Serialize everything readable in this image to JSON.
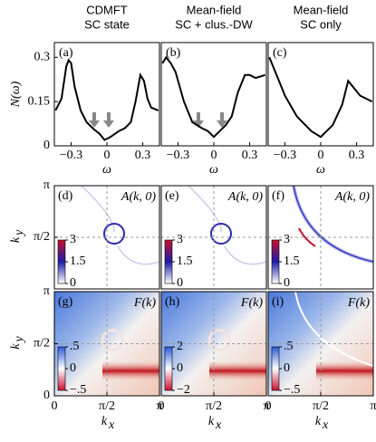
{
  "chart_data": [
    {
      "type": "line",
      "header": [
        "CDMFT",
        "SC state"
      ],
      "panel": "(a)",
      "ylabel": "N(ω)",
      "xlabel": "ω",
      "x": [
        -0.43,
        -0.38,
        -0.34,
        -0.32,
        -0.3,
        -0.27,
        -0.22,
        -0.17,
        -0.12,
        -0.06,
        -0.02,
        0.03,
        0.1,
        0.15,
        0.2,
        0.24,
        0.28,
        0.31,
        0.34,
        0.37,
        0.43
      ],
      "values": [
        0.12,
        0.16,
        0.27,
        0.29,
        0.28,
        0.2,
        0.12,
        0.08,
        0.06,
        0.04,
        0.02,
        0.03,
        0.05,
        0.06,
        0.08,
        0.15,
        0.24,
        0.22,
        0.16,
        0.13,
        0.12
      ],
      "color": "#000000",
      "xlim": [
        -0.44,
        0.44
      ],
      "ylim": [
        0,
        0.35
      ],
      "xticks": [
        {
          "value": -0.3,
          "label": "−0.3"
        },
        0,
        0.3
      ],
      "yticks": [
        0,
        0.15,
        0.3
      ]
    },
    {
      "type": "line",
      "header": [
        "Mean-field",
        "SC + clus.-DW"
      ],
      "panel": "(b)",
      "xlabel": "ω",
      "x": [
        -0.43,
        -0.4,
        -0.36,
        -0.32,
        -0.25,
        -0.18,
        -0.1,
        -0.05,
        0,
        0.05,
        0.1,
        0.15,
        0.2,
        0.26,
        0.3,
        0.35,
        0.43
      ],
      "values": [
        0.28,
        0.3,
        0.28,
        0.25,
        0.15,
        0.08,
        0.06,
        0.05,
        0.03,
        0.05,
        0.07,
        0.1,
        0.18,
        0.24,
        0.24,
        0.23,
        0.24
      ],
      "color": "#000000",
      "xlim": [
        -0.44,
        0.44
      ],
      "ylim": [
        0,
        0.35
      ],
      "xticks": [
        {
          "value": -0.3,
          "label": "−0.3"
        },
        0,
        0.3
      ]
    },
    {
      "type": "line",
      "header": [
        "Mean-field",
        "SC only"
      ],
      "panel": "(c)",
      "xlabel": "ω",
      "x": [
        -0.43,
        -0.39,
        -0.35,
        -0.3,
        -0.2,
        -0.08,
        0,
        0.1,
        0.18,
        0.23,
        0.27,
        0.33,
        0.43
      ],
      "values": [
        0.3,
        0.26,
        0.22,
        0.17,
        0.1,
        0.05,
        0.03,
        0.07,
        0.14,
        0.22,
        0.2,
        0.17,
        0.15
      ],
      "color": "#000000",
      "xlim": [
        -0.44,
        0.44
      ],
      "ylim": [
        0,
        0.35
      ],
      "xticks": [
        {
          "value": -0.3,
          "label": "−0.3"
        },
        0,
        0.3
      ]
    },
    {
      "type": "heatmap",
      "panel": "(d)",
      "title": "A(k, 0)",
      "ylabel": "k",
      "ylabel_sub": "y",
      "xlim": [
        0,
        3.1416
      ],
      "ylim": [
        0,
        3.1416
      ],
      "yticks": [
        {
          "value": 1.5708,
          "label": "π/2"
        },
        {
          "value": 3.1416,
          "label": "π"
        }
      ],
      "colorbar": {
        "clim": [
          0,
          3
        ],
        "ticks": [
          0,
          1.5,
          3
        ],
        "colors": [
          "#ffffff",
          "#1c1ca8",
          "#c8102e"
        ]
      }
    },
    {
      "type": "heatmap",
      "panel": "(e)",
      "title": "A(k, 0)",
      "xlim": [
        0,
        3.1416
      ],
      "ylim": [
        0,
        3.1416
      ],
      "colorbar": {
        "clim": [
          0,
          3
        ],
        "ticks": [
          0,
          1.5,
          3
        ],
        "colors": [
          "#ffffff",
          "#1c1ca8",
          "#c8102e"
        ]
      }
    },
    {
      "type": "heatmap",
      "panel": "(f)",
      "title": "A(k, 0)",
      "xlim": [
        0,
        3.1416
      ],
      "ylim": [
        0,
        3.1416
      ],
      "colorbar": {
        "clim": [
          0,
          3
        ],
        "ticks": [
          0,
          1.5,
          3
        ],
        "colors": [
          "#ffffff",
          "#1c1ca8",
          "#c8102e"
        ]
      }
    },
    {
      "type": "heatmap",
      "panel": "(g)",
      "title": "F(k)",
      "ylabel": "k",
      "ylabel_sub": "y",
      "xlabel": "k",
      "xlabel_sub": "x",
      "xlim": [
        0,
        3.1416
      ],
      "ylim": [
        0,
        3.1416
      ],
      "xticks": [
        0,
        {
          "value": 1.5708,
          "label": "π/2"
        },
        {
          "value": 3.1416,
          "label": "π"
        }
      ],
      "yticks": [
        0,
        {
          "value": 1.5708,
          "label": "π/2"
        },
        {
          "value": 3.1416,
          "label": "π"
        }
      ],
      "colorbar": {
        "clim": [
          -0.5,
          0.5
        ],
        "ticks": [
          {
            "value": -0.5,
            "label": "−.5"
          },
          0,
          {
            "value": 0.5,
            "label": ".5"
          }
        ],
        "colors": [
          "#c8102e",
          "#ffffff",
          "#2a5bd7"
        ]
      }
    },
    {
      "type": "heatmap",
      "panel": "(h)",
      "title": "F(k)",
      "xlabel": "k",
      "xlabel_sub": "x",
      "xlim": [
        0,
        3.1416
      ],
      "ylim": [
        0,
        3.1416
      ],
      "xticks": [
        0,
        {
          "value": 1.5708,
          "label": "π/2"
        },
        {
          "value": 3.1416,
          "label": "π"
        }
      ],
      "colorbar": {
        "clim": [
          -2,
          2
        ],
        "ticks": [
          {
            "value": -2,
            "label": "−2"
          },
          0,
          2
        ],
        "colors": [
          "#c8102e",
          "#ffffff",
          "#2a5bd7"
        ]
      }
    },
    {
      "type": "heatmap",
      "panel": "(i)",
      "title": "F(k)",
      "xlabel": "k",
      "xlabel_sub": "x",
      "xlim": [
        0,
        3.1416
      ],
      "ylim": [
        0,
        3.1416
      ],
      "xticks": [
        0,
        {
          "value": 1.5708,
          "label": "π/2"
        },
        {
          "value": 3.1416,
          "label": "π"
        }
      ],
      "colorbar": {
        "clim": [
          -0.5,
          0.5
        ],
        "ticks": [
          {
            "value": -0.5,
            "label": "−.5"
          },
          0,
          {
            "value": 0.5,
            "label": ".5"
          }
        ],
        "colors": [
          "#c8102e",
          "#ffffff",
          "#2a5bd7"
        ]
      }
    }
  ]
}
